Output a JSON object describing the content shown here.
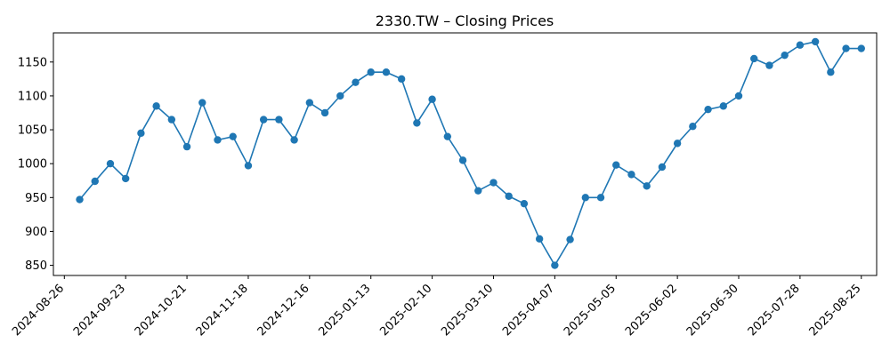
{
  "chart_data": {
    "type": "line",
    "title": "2330.TW – Closing Prices",
    "xlabel": "",
    "ylabel": "",
    "x_ticks": [
      "2024-08-26",
      "2024-09-23",
      "2024-10-21",
      "2024-11-18",
      "2024-12-16",
      "2025-01-13",
      "2025-02-10",
      "2025-03-10",
      "2025-04-07",
      "2025-05-05",
      "2025-06-02",
      "2025-06-30",
      "2025-07-28",
      "2025-08-25"
    ],
    "y_ticks": [
      850,
      900,
      950,
      1000,
      1050,
      1100,
      1150
    ],
    "xlim": [
      "2024-08-21",
      "2025-09-01"
    ],
    "ylim": [
      835,
      1193
    ],
    "grid": false,
    "legend": "none",
    "color": "#1f77b4",
    "marker": "circle",
    "series": [
      {
        "x": [
          "2024-09-02",
          "2024-09-09",
          "2024-09-16",
          "2024-09-23",
          "2024-09-30",
          "2024-10-07",
          "2024-10-14",
          "2024-10-21",
          "2024-10-28",
          "2024-11-04",
          "2024-11-11",
          "2024-11-18",
          "2024-11-25",
          "2024-12-02",
          "2024-12-09",
          "2024-12-16",
          "2024-12-23",
          "2024-12-30",
          "2025-01-06",
          "2025-01-13",
          "2025-01-20",
          "2025-01-27",
          "2025-02-03",
          "2025-02-10",
          "2025-02-17",
          "2025-02-24",
          "2025-03-03",
          "2025-03-10",
          "2025-03-17",
          "2025-03-24",
          "2025-03-31",
          "2025-04-07",
          "2025-04-14",
          "2025-04-21",
          "2025-04-28",
          "2025-05-05",
          "2025-05-12",
          "2025-05-19",
          "2025-05-26",
          "2025-06-02",
          "2025-06-09",
          "2025-06-16",
          "2025-06-23",
          "2025-06-30",
          "2025-07-07",
          "2025-07-14",
          "2025-07-21",
          "2025-07-28",
          "2025-08-04",
          "2025-08-11",
          "2025-08-18",
          "2025-08-25"
        ],
        "values": [
          947,
          974,
          1000,
          978,
          1045,
          1085,
          1065,
          1025,
          1090,
          1035,
          1040,
          997,
          1065,
          1065,
          1035,
          1090,
          1075,
          1100,
          1120,
          1135,
          1135,
          1125,
          1060,
          1095,
          1040,
          1005,
          960,
          972,
          952,
          941,
          889,
          850,
          888,
          950,
          950,
          998,
          984,
          967,
          995,
          1030,
          1055,
          1080,
          1085,
          1100,
          1155,
          1145,
          1160,
          1175,
          1180,
          1135,
          1170,
          1170
        ]
      }
    ]
  }
}
